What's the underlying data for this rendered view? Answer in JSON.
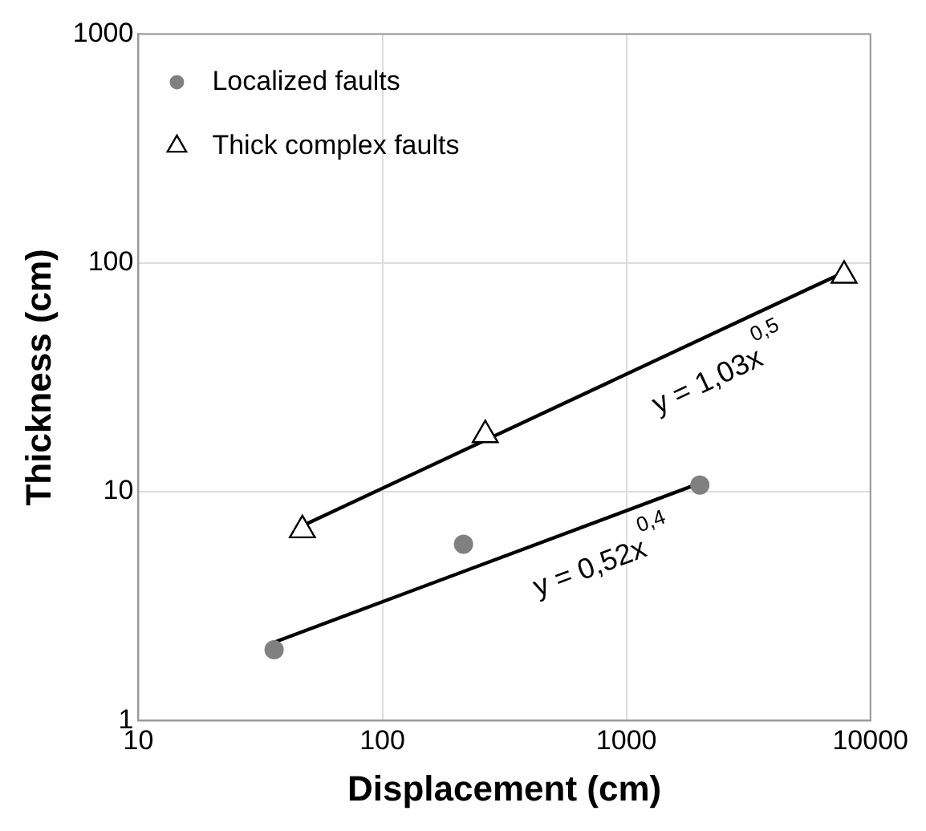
{
  "chart_data": {
    "type": "scatter",
    "xlabel": "Displacement (cm)",
    "ylabel": "Thickness (cm)",
    "series": [
      {
        "name": "Localized faults",
        "color": "#808080",
        "marker": "circle",
        "x": [
          36,
          215,
          2000
        ],
        "values": [
          2.04,
          5.9,
          10.7
        ]
      },
      {
        "name": "Thick complex faults",
        "color": "#000000",
        "marker": "triangle",
        "x": [
          47,
          264,
          7800
        ],
        "values": [
          6.8,
          17.7,
          88
        ]
      },
      {
        "type": "line",
        "color": "#000000",
        "marker": "none",
        "x": [
          47,
          7800
        ],
        "values": [
          7.1,
          91
        ]
      },
      {
        "type": "line",
        "color": "#000000",
        "marker": "none",
        "x": [
          36,
          2000
        ],
        "values": [
          2.2,
          10.9
        ]
      }
    ],
    "annotations": [
      "y = 1,03x$^{0,5}$",
      "y = 0,52x$^{0,4}$"
    ],
    "log": "xy",
    "xlim": [
      10,
      10000
    ],
    "ylim": [
      1,
      1000
    ],
    "xticks": [
      10,
      100,
      1000,
      10000
    ],
    "yticks": [
      1,
      10,
      100,
      1000
    ],
    "grid": true,
    "legend": "top left"
  }
}
